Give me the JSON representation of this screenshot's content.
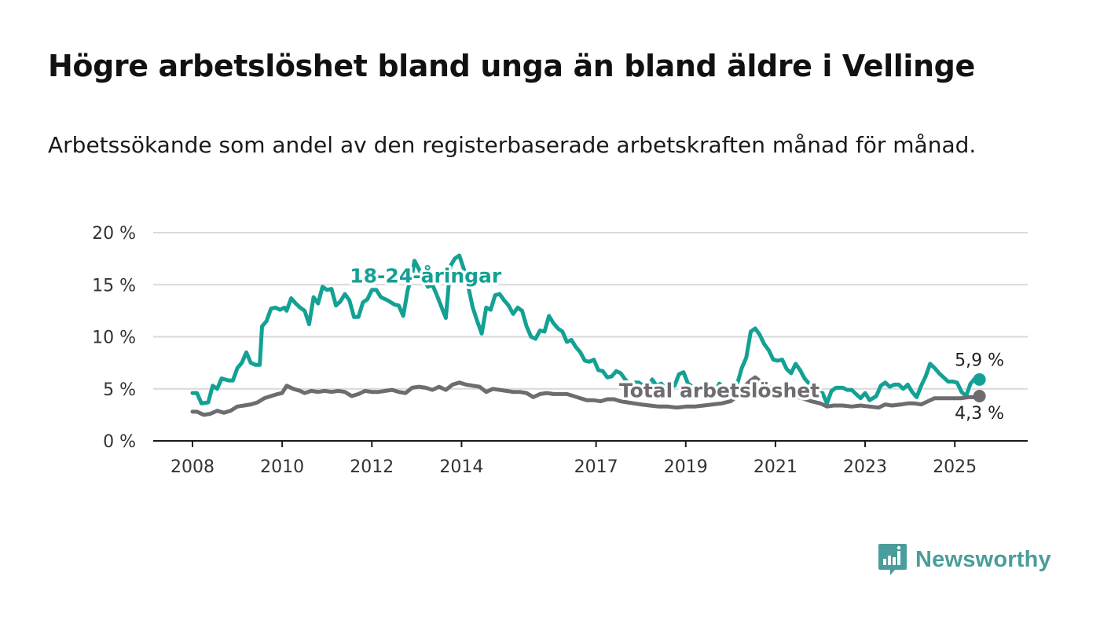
{
  "title": "Högre arbetslöshet bland unga än bland äldre i Vellinge",
  "subtitle": "Arbetssökande som andel av den registerbaserade arbetskraften månad för månad.",
  "brand": {
    "name": "Newsworthy",
    "icon": "newsworthy-logo-icon",
    "color": "#4a9d9a"
  },
  "chart_data": {
    "type": "line",
    "title": "Högre arbetslöshet bland unga än bland äldre i Vellinge",
    "subtitle": "Arbetssökande som andel av den registerbaserade arbetskraften månad för månad.",
    "xlabel": "",
    "ylabel": "",
    "xlim": [
      2008.0,
      2025.75
    ],
    "ylim": [
      0,
      20
    ],
    "y_ticks": [
      {
        "value": 0,
        "label": "0 %"
      },
      {
        "value": 5,
        "label": "5 %"
      },
      {
        "value": 10,
        "label": "10 %"
      },
      {
        "value": 15,
        "label": "15 %"
      },
      {
        "value": 20,
        "label": "20 %"
      }
    ],
    "x_ticks": [
      {
        "value": 2008,
        "label": "2008"
      },
      {
        "value": 2010,
        "label": "2010"
      },
      {
        "value": 2012,
        "label": "2012"
      },
      {
        "value": 2014,
        "label": "2014"
      },
      {
        "value": 2017,
        "label": "2017"
      },
      {
        "value": 2019,
        "label": "2019"
      },
      {
        "value": 2021,
        "label": "2021"
      },
      {
        "value": 2023,
        "label": "2023"
      },
      {
        "value": 2025,
        "label": "2025"
      }
    ],
    "grid": "horizontal",
    "legend": "none",
    "series": [
      {
        "name": "18-24-åringar",
        "color": "#13a194",
        "end_label": "5,9 %",
        "points": [
          [
            2008.0,
            4.6
          ],
          [
            2008.1,
            4.6
          ],
          [
            2008.2,
            3.6
          ],
          [
            2008.35,
            3.7
          ],
          [
            2008.45,
            5.3
          ],
          [
            2008.55,
            5.0
          ],
          [
            2008.65,
            6.0
          ],
          [
            2008.8,
            5.8
          ],
          [
            2008.9,
            5.8
          ],
          [
            2009.0,
            7.0
          ],
          [
            2009.1,
            7.5
          ],
          [
            2009.2,
            8.5
          ],
          [
            2009.3,
            7.5
          ],
          [
            2009.4,
            7.3
          ],
          [
            2009.5,
            7.3
          ],
          [
            2009.55,
            11.0
          ],
          [
            2009.65,
            11.5
          ],
          [
            2009.75,
            12.7
          ],
          [
            2009.85,
            12.8
          ],
          [
            2009.95,
            12.6
          ],
          [
            2010.05,
            12.8
          ],
          [
            2010.1,
            12.5
          ],
          [
            2010.2,
            13.7
          ],
          [
            2010.3,
            13.2
          ],
          [
            2010.4,
            12.8
          ],
          [
            2010.5,
            12.5
          ],
          [
            2010.6,
            11.2
          ],
          [
            2010.7,
            13.8
          ],
          [
            2010.8,
            13.2
          ],
          [
            2010.9,
            14.8
          ],
          [
            2011.0,
            14.5
          ],
          [
            2011.1,
            14.6
          ],
          [
            2011.2,
            13.0
          ],
          [
            2011.3,
            13.4
          ],
          [
            2011.4,
            14.1
          ],
          [
            2011.5,
            13.5
          ],
          [
            2011.6,
            11.9
          ],
          [
            2011.7,
            11.9
          ],
          [
            2011.8,
            13.3
          ],
          [
            2011.9,
            13.6
          ],
          [
            2012.0,
            14.5
          ],
          [
            2012.1,
            14.5
          ],
          [
            2012.2,
            13.8
          ],
          [
            2012.35,
            13.5
          ],
          [
            2012.5,
            13.1
          ],
          [
            2012.6,
            13.0
          ],
          [
            2012.7,
            12.0
          ],
          [
            2012.8,
            14.5
          ],
          [
            2012.9,
            16.0
          ],
          [
            2012.95,
            17.3
          ],
          [
            2013.05,
            16.5
          ],
          [
            2013.15,
            15.5
          ],
          [
            2013.25,
            14.8
          ],
          [
            2013.35,
            15.0
          ],
          [
            2013.45,
            14.0
          ],
          [
            2013.55,
            12.9
          ],
          [
            2013.65,
            11.8
          ],
          [
            2013.75,
            16.8
          ],
          [
            2013.85,
            17.5
          ],
          [
            2013.95,
            17.8
          ],
          [
            2014.05,
            16.5
          ],
          [
            2014.15,
            14.8
          ],
          [
            2014.25,
            12.8
          ],
          [
            2014.35,
            11.5
          ],
          [
            2014.45,
            10.3
          ],
          [
            2014.55,
            12.8
          ],
          [
            2014.65,
            12.6
          ],
          [
            2014.75,
            14.0
          ],
          [
            2014.85,
            14.1
          ],
          [
            2014.95,
            13.5
          ],
          [
            2015.05,
            13.0
          ],
          [
            2015.15,
            12.2
          ],
          [
            2015.25,
            12.8
          ],
          [
            2015.35,
            12.5
          ],
          [
            2015.45,
            11.0
          ],
          [
            2015.55,
            10.0
          ],
          [
            2015.65,
            9.8
          ],
          [
            2015.75,
            10.6
          ],
          [
            2015.85,
            10.5
          ],
          [
            2015.95,
            12.0
          ],
          [
            2016.05,
            11.3
          ],
          [
            2016.15,
            10.8
          ],
          [
            2016.25,
            10.5
          ],
          [
            2016.35,
            9.5
          ],
          [
            2016.45,
            9.7
          ],
          [
            2016.55,
            9.0
          ],
          [
            2016.65,
            8.5
          ],
          [
            2016.75,
            7.7
          ],
          [
            2016.85,
            7.6
          ],
          [
            2016.95,
            7.8
          ],
          [
            2017.05,
            6.8
          ],
          [
            2017.15,
            6.7
          ],
          [
            2017.25,
            6.1
          ],
          [
            2017.35,
            6.2
          ],
          [
            2017.45,
            6.7
          ],
          [
            2017.55,
            6.5
          ],
          [
            2017.65,
            5.9
          ],
          [
            2017.75,
            5.4
          ],
          [
            2017.85,
            5.6
          ],
          [
            2017.95,
            5.6
          ],
          [
            2018.05,
            5.3
          ],
          [
            2018.15,
            5.0
          ],
          [
            2018.25,
            5.9
          ],
          [
            2018.35,
            5.3
          ],
          [
            2018.45,
            5.5
          ],
          [
            2018.55,
            5.0
          ],
          [
            2018.65,
            5.2
          ],
          [
            2018.75,
            5.3
          ],
          [
            2018.85,
            6.4
          ],
          [
            2018.95,
            6.6
          ],
          [
            2019.05,
            5.5
          ],
          [
            2019.15,
            5.2
          ],
          [
            2019.25,
            4.9
          ],
          [
            2019.35,
            5.1
          ],
          [
            2019.45,
            4.8
          ],
          [
            2019.55,
            4.6
          ],
          [
            2019.65,
            4.6
          ],
          [
            2019.75,
            5.5
          ],
          [
            2019.85,
            5.1
          ],
          [
            2019.95,
            4.9
          ],
          [
            2020.05,
            5.1
          ],
          [
            2020.15,
            5.5
          ],
          [
            2020.25,
            7.0
          ],
          [
            2020.35,
            8.0
          ],
          [
            2020.45,
            10.5
          ],
          [
            2020.55,
            10.8
          ],
          [
            2020.65,
            10.2
          ],
          [
            2020.75,
            9.3
          ],
          [
            2020.85,
            8.7
          ],
          [
            2020.95,
            7.8
          ],
          [
            2021.05,
            7.7
          ],
          [
            2021.15,
            7.8
          ],
          [
            2021.25,
            6.9
          ],
          [
            2021.35,
            6.5
          ],
          [
            2021.45,
            7.4
          ],
          [
            2021.55,
            6.8
          ],
          [
            2021.65,
            6.0
          ],
          [
            2021.75,
            5.5
          ],
          [
            2021.85,
            5.1
          ],
          [
            2021.95,
            4.7
          ],
          [
            2022.05,
            4.6
          ],
          [
            2022.15,
            3.6
          ],
          [
            2022.25,
            4.8
          ],
          [
            2022.35,
            5.1
          ],
          [
            2022.5,
            5.1
          ],
          [
            2022.6,
            4.9
          ],
          [
            2022.7,
            4.9
          ],
          [
            2022.8,
            4.5
          ],
          [
            2022.9,
            4.1
          ],
          [
            2023.0,
            4.6
          ],
          [
            2023.1,
            3.9
          ],
          [
            2023.25,
            4.3
          ],
          [
            2023.35,
            5.3
          ],
          [
            2023.45,
            5.6
          ],
          [
            2023.55,
            5.2
          ],
          [
            2023.65,
            5.4
          ],
          [
            2023.75,
            5.4
          ],
          [
            2023.85,
            5.0
          ],
          [
            2023.95,
            5.4
          ],
          [
            2024.05,
            4.7
          ],
          [
            2024.15,
            4.2
          ],
          [
            2024.25,
            5.3
          ],
          [
            2024.35,
            6.2
          ],
          [
            2024.45,
            7.4
          ],
          [
            2024.55,
            7.0
          ],
          [
            2024.65,
            6.5
          ],
          [
            2024.75,
            6.1
          ],
          [
            2024.85,
            5.7
          ],
          [
            2024.95,
            5.7
          ],
          [
            2025.05,
            5.6
          ],
          [
            2025.15,
            4.7
          ],
          [
            2025.25,
            4.3
          ],
          [
            2025.35,
            5.5
          ],
          [
            2025.45,
            6.0
          ],
          [
            2025.55,
            5.9
          ]
        ]
      },
      {
        "name": "Total arbetslöshet",
        "color": "#6e6c70",
        "end_label": "4,3 %",
        "points": [
          [
            2008.0,
            2.8
          ],
          [
            2008.1,
            2.8
          ],
          [
            2008.25,
            2.5
          ],
          [
            2008.4,
            2.6
          ],
          [
            2008.55,
            2.9
          ],
          [
            2008.7,
            2.7
          ],
          [
            2008.85,
            2.9
          ],
          [
            2009.0,
            3.3
          ],
          [
            2009.15,
            3.4
          ],
          [
            2009.3,
            3.5
          ],
          [
            2009.45,
            3.7
          ],
          [
            2009.6,
            4.1
          ],
          [
            2009.75,
            4.3
          ],
          [
            2009.9,
            4.5
          ],
          [
            2010.0,
            4.6
          ],
          [
            2010.1,
            5.3
          ],
          [
            2010.25,
            5.0
          ],
          [
            2010.4,
            4.8
          ],
          [
            2010.5,
            4.6
          ],
          [
            2010.65,
            4.8
          ],
          [
            2010.8,
            4.7
          ],
          [
            2010.95,
            4.8
          ],
          [
            2011.1,
            4.7
          ],
          [
            2011.25,
            4.8
          ],
          [
            2011.4,
            4.7
          ],
          [
            2011.55,
            4.3
          ],
          [
            2011.7,
            4.5
          ],
          [
            2011.85,
            4.8
          ],
          [
            2012.0,
            4.7
          ],
          [
            2012.15,
            4.7
          ],
          [
            2012.3,
            4.8
          ],
          [
            2012.45,
            4.9
          ],
          [
            2012.6,
            4.7
          ],
          [
            2012.75,
            4.6
          ],
          [
            2012.9,
            5.1
          ],
          [
            2013.05,
            5.2
          ],
          [
            2013.2,
            5.1
          ],
          [
            2013.35,
            4.9
          ],
          [
            2013.5,
            5.2
          ],
          [
            2013.65,
            4.9
          ],
          [
            2013.8,
            5.4
          ],
          [
            2013.95,
            5.6
          ],
          [
            2014.1,
            5.4
          ],
          [
            2014.25,
            5.3
          ],
          [
            2014.4,
            5.2
          ],
          [
            2014.55,
            4.7
          ],
          [
            2014.7,
            5.0
          ],
          [
            2014.85,
            4.9
          ],
          [
            2015.0,
            4.8
          ],
          [
            2015.15,
            4.7
          ],
          [
            2015.3,
            4.7
          ],
          [
            2015.45,
            4.6
          ],
          [
            2015.6,
            4.2
          ],
          [
            2015.75,
            4.5
          ],
          [
            2015.9,
            4.6
          ],
          [
            2016.05,
            4.5
          ],
          [
            2016.2,
            4.5
          ],
          [
            2016.35,
            4.5
          ],
          [
            2016.5,
            4.3
          ],
          [
            2016.65,
            4.1
          ],
          [
            2016.8,
            3.9
          ],
          [
            2016.95,
            3.9
          ],
          [
            2017.1,
            3.8
          ],
          [
            2017.25,
            4.0
          ],
          [
            2017.4,
            4.0
          ],
          [
            2017.55,
            3.8
          ],
          [
            2017.7,
            3.7
          ],
          [
            2017.85,
            3.6
          ],
          [
            2018.0,
            3.5
          ],
          [
            2018.2,
            3.4
          ],
          [
            2018.4,
            3.3
          ],
          [
            2018.6,
            3.3
          ],
          [
            2018.8,
            3.2
          ],
          [
            2019.0,
            3.3
          ],
          [
            2019.2,
            3.3
          ],
          [
            2019.4,
            3.4
          ],
          [
            2019.6,
            3.5
          ],
          [
            2019.8,
            3.6
          ],
          [
            2020.0,
            3.8
          ],
          [
            2020.15,
            4.3
          ],
          [
            2020.3,
            5.2
          ],
          [
            2020.45,
            5.8
          ],
          [
            2020.55,
            6.1
          ],
          [
            2020.7,
            5.6
          ],
          [
            2020.85,
            5.2
          ],
          [
            2021.0,
            4.9
          ],
          [
            2021.2,
            4.6
          ],
          [
            2021.4,
            4.3
          ],
          [
            2021.6,
            4.1
          ],
          [
            2021.8,
            3.8
          ],
          [
            2022.0,
            3.6
          ],
          [
            2022.15,
            3.3
          ],
          [
            2022.3,
            3.4
          ],
          [
            2022.5,
            3.4
          ],
          [
            2022.7,
            3.3
          ],
          [
            2022.9,
            3.4
          ],
          [
            2023.1,
            3.3
          ],
          [
            2023.3,
            3.2
          ],
          [
            2023.45,
            3.5
          ],
          [
            2023.6,
            3.4
          ],
          [
            2023.8,
            3.5
          ],
          [
            2023.95,
            3.6
          ],
          [
            2024.1,
            3.6
          ],
          [
            2024.25,
            3.5
          ],
          [
            2024.4,
            3.8
          ],
          [
            2024.55,
            4.1
          ],
          [
            2024.7,
            4.1
          ],
          [
            2024.85,
            4.1
          ],
          [
            2025.0,
            4.1
          ],
          [
            2025.15,
            4.1
          ],
          [
            2025.3,
            4.2
          ],
          [
            2025.45,
            4.2
          ],
          [
            2025.55,
            4.3
          ]
        ]
      }
    ]
  }
}
